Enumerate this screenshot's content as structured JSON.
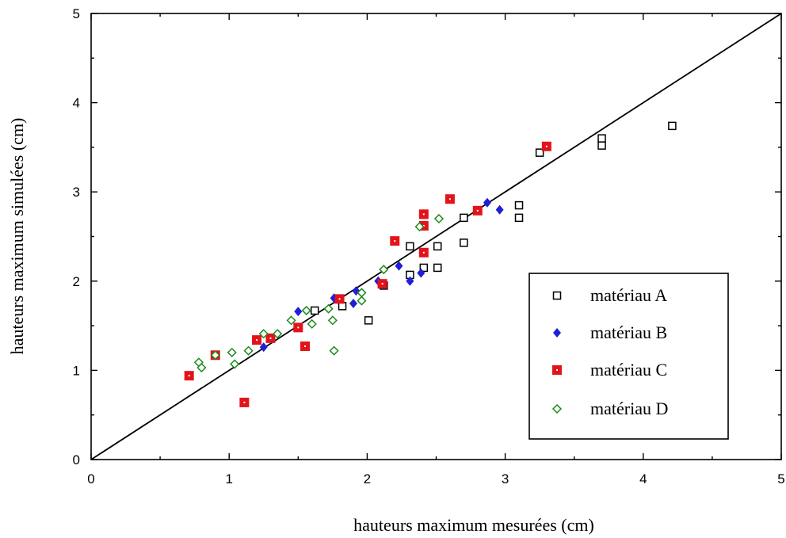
{
  "chart_data": {
    "type": "scatter",
    "title": "",
    "xlabel": "hauteurs maximum mesurées (cm)",
    "ylabel": "hauteurs maximum simulées (cm)",
    "xlim": [
      0,
      5
    ],
    "ylim": [
      0,
      5
    ],
    "x_ticks": [
      "0",
      "1",
      "2",
      "3",
      "4",
      "5"
    ],
    "y_ticks": [
      "0",
      "1",
      "2",
      "3",
      "4",
      "5"
    ],
    "grid": false,
    "reference_line": {
      "from": [
        0,
        0
      ],
      "to": [
        5,
        5
      ]
    },
    "legend_position": "bottom-right",
    "series": [
      {
        "name": "matériau A",
        "marker": "open-square",
        "color": "#000000",
        "points": [
          [
            1.62,
            1.67
          ],
          [
            1.82,
            1.72
          ],
          [
            2.01,
            1.56
          ],
          [
            2.12,
            1.95
          ],
          [
            2.31,
            2.07
          ],
          [
            2.31,
            2.39
          ],
          [
            2.41,
            2.15
          ],
          [
            2.51,
            2.15
          ],
          [
            2.51,
            2.39
          ],
          [
            2.7,
            2.43
          ],
          [
            2.7,
            2.71
          ],
          [
            3.1,
            2.71
          ],
          [
            3.1,
            2.85
          ],
          [
            3.25,
            3.44
          ],
          [
            3.7,
            3.52
          ],
          [
            3.7,
            3.6
          ],
          [
            4.21,
            3.74
          ]
        ]
      },
      {
        "name": "matériau B",
        "marker": "filled-diamond",
        "color": "#1f1fd8",
        "points": [
          [
            1.25,
            1.26
          ],
          [
            1.5,
            1.66
          ],
          [
            1.76,
            1.81
          ],
          [
            1.9,
            1.75
          ],
          [
            1.92,
            1.89
          ],
          [
            2.08,
            2.0
          ],
          [
            2.23,
            2.17
          ],
          [
            2.31,
            2.0
          ],
          [
            2.39,
            2.09
          ],
          [
            2.87,
            2.88
          ],
          [
            2.96,
            2.8
          ]
        ]
      },
      {
        "name": "matériau C",
        "marker": "square-dot",
        "color": "#e3131b",
        "points": [
          [
            0.71,
            0.94
          ],
          [
            0.9,
            1.17
          ],
          [
            1.11,
            0.64
          ],
          [
            1.2,
            1.34
          ],
          [
            1.3,
            1.36
          ],
          [
            1.5,
            1.48
          ],
          [
            1.55,
            1.27
          ],
          [
            1.8,
            1.8
          ],
          [
            2.11,
            1.97
          ],
          [
            2.2,
            2.45
          ],
          [
            2.41,
            2.32
          ],
          [
            2.41,
            2.62
          ],
          [
            2.41,
            2.75
          ],
          [
            2.6,
            2.92
          ],
          [
            2.8,
            2.79
          ],
          [
            3.3,
            3.51
          ]
        ]
      },
      {
        "name": "matériau D",
        "marker": "open-diamond",
        "color": "#1a8a1a",
        "points": [
          [
            0.78,
            1.09
          ],
          [
            0.8,
            1.03
          ],
          [
            0.9,
            1.17
          ],
          [
            1.02,
            1.2
          ],
          [
            1.04,
            1.07
          ],
          [
            1.14,
            1.22
          ],
          [
            1.25,
            1.41
          ],
          [
            1.35,
            1.41
          ],
          [
            1.45,
            1.56
          ],
          [
            1.56,
            1.67
          ],
          [
            1.6,
            1.52
          ],
          [
            1.72,
            1.69
          ],
          [
            1.75,
            1.56
          ],
          [
            1.76,
            1.22
          ],
          [
            1.96,
            1.78
          ],
          [
            1.96,
            1.87
          ],
          [
            2.12,
            2.13
          ],
          [
            2.38,
            2.61
          ],
          [
            2.52,
            2.7
          ]
        ]
      }
    ]
  }
}
